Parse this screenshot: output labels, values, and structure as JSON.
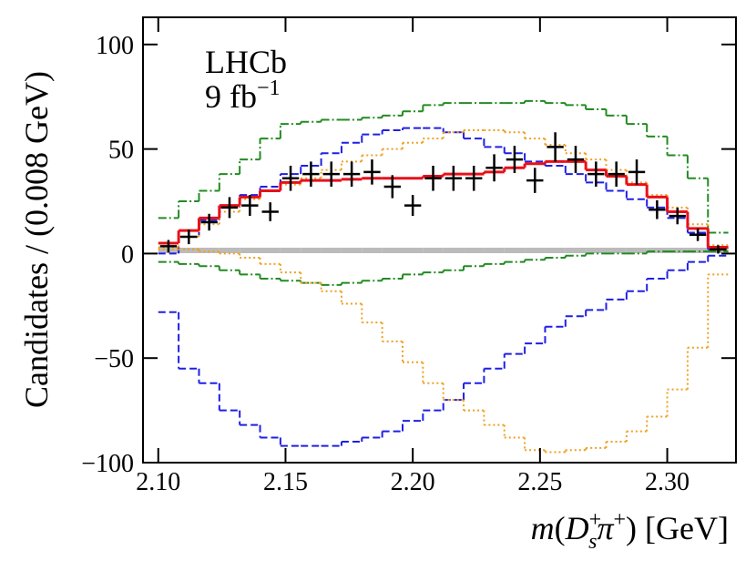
{
  "chart_data": {
    "type": "histogram",
    "annotations": {
      "experiment": "LHCb",
      "lumi": "9 fb",
      "lumi_sup": "−1"
    },
    "ylabel": "Candidates / (0.008 GeV)",
    "xlabel": [
      {
        "text": "m",
        "italic": true
      },
      {
        "text": "("
      },
      {
        "text": "D",
        "italic": true
      },
      {
        "text": "+",
        "shift": "sup"
      },
      {
        "text": "s",
        "shift": "sub",
        "italic": true
      },
      {
        "text": "π",
        "italic": true
      },
      {
        "text": "+",
        "shift": "sup"
      },
      {
        "text": ") [GeV]"
      }
    ],
    "xlim": [
      2.094,
      2.327
    ],
    "ylim": [
      -100,
      113
    ],
    "xticks": [
      {
        "value": 2.1,
        "label": "2.10"
      },
      {
        "value": 2.15,
        "label": "2.15"
      },
      {
        "value": 2.2,
        "label": "2.20"
      },
      {
        "value": 2.25,
        "label": "2.25"
      },
      {
        "value": 2.3,
        "label": "2.30"
      }
    ],
    "yticks": [
      {
        "value": -100,
        "label": "−100"
      },
      {
        "value": -50,
        "label": "−50"
      },
      0,
      50,
      100
    ],
    "bins": [
      2.1,
      2.108,
      2.116,
      2.124,
      2.132,
      2.14,
      2.148,
      2.156,
      2.164,
      2.172,
      2.18,
      2.188,
      2.196,
      2.204,
      2.212,
      2.22,
      2.228,
      2.236,
      2.244,
      2.252,
      2.26,
      2.268,
      2.276,
      2.284,
      2.292,
      2.3,
      2.308,
      2.316,
      2.324
    ],
    "series": [
      {
        "color": "#bbbbbb",
        "style": "band",
        "values": [
          1.5,
          1.5,
          1.5,
          1.5,
          1.5,
          1.5,
          1.5,
          1.5,
          1.5,
          1.5,
          1.5,
          1.5,
          1.5,
          1.5,
          1.5,
          1.5,
          1.5,
          1.5,
          1.5,
          1.5,
          1.5,
          1.5,
          1.5,
          1.5,
          1.5,
          1.5,
          1.5,
          1.5
        ]
      },
      {
        "color": "#228b22",
        "style": "dashdot",
        "values": [
          17,
          25,
          30,
          38,
          45,
          55,
          62,
          63,
          64,
          64,
          65,
          66,
          68,
          71,
          72,
          72,
          72,
          72,
          73,
          72,
          71,
          69,
          66,
          62,
          56,
          47,
          36,
          10
        ]
      },
      {
        "color": "#228b22",
        "style": "dashdot",
        "values": [
          -4,
          -5,
          -6,
          -8,
          -10,
          -12,
          -13,
          -14,
          -15,
          -14,
          -13,
          -12,
          -10,
          -9,
          -8,
          -6,
          -5,
          -4,
          -3,
          -2,
          -1,
          0,
          0,
          0,
          1,
          1,
          1,
          1
        ]
      },
      {
        "color": "#1f1fe6",
        "style": "dashed",
        "values": [
          0,
          8,
          16,
          22,
          28,
          32,
          38,
          42,
          48,
          53,
          57,
          59,
          60,
          60,
          58,
          55,
          51,
          48,
          44,
          42,
          38,
          34,
          30,
          26,
          22,
          17,
          10,
          2
        ]
      },
      {
        "color": "#1f1fe6",
        "style": "dashed",
        "values": [
          -28,
          -55,
          -62,
          -75,
          -82,
          -88,
          -92,
          -92,
          -92,
          -90,
          -88,
          -85,
          -80,
          -75,
          -70,
          -62,
          -55,
          -48,
          -43,
          -35,
          -30,
          -27,
          -22,
          -18,
          -12,
          -8,
          -4,
          -1
        ]
      },
      {
        "color": "#f0a020",
        "style": "dotted",
        "values": [
          3,
          8,
          14,
          20,
          26,
          30,
          33,
          36,
          40,
          44,
          47,
          50,
          53,
          55,
          58,
          59,
          59,
          58,
          55,
          52,
          48,
          45,
          40,
          34,
          28,
          22,
          14,
          4
        ]
      },
      {
        "color": "#f0a020",
        "style": "dotted",
        "values": [
          2,
          2,
          1,
          0,
          -2,
          -5,
          -9,
          -14,
          -18,
          -24,
          -33,
          -42,
          -52,
          -62,
          -70,
          -75,
          -82,
          -88,
          -94,
          -95,
          -94,
          -93,
          -90,
          -85,
          -78,
          -65,
          -45,
          -10
        ]
      },
      {
        "color": "#e8101a",
        "style": "solid",
        "values": [
          5,
          11,
          17,
          23,
          27,
          30,
          34,
          35,
          35,
          35.5,
          36,
          36,
          36,
          37,
          38,
          38,
          39,
          41,
          43,
          44,
          44,
          40,
          37,
          33,
          27,
          20,
          12,
          3
        ]
      }
    ],
    "points": {
      "color": "#000000",
      "values": [
        3.5,
        8,
        15,
        22,
        23,
        20,
        36,
        38,
        38,
        38,
        39,
        32,
        23,
        36,
        36,
        36,
        41,
        45,
        35,
        51,
        45,
        38,
        38,
        39,
        21,
        18,
        9,
        2
      ],
      "errors": [
        3,
        3.5,
        4,
        5,
        5,
        4.5,
        6,
        6,
        6,
        6,
        6,
        5.5,
        5,
        6,
        6,
        6,
        6.5,
        6.5,
        6,
        7,
        6.5,
        6,
        6,
        6,
        4.5,
        4,
        3,
        2
      ]
    }
  }
}
